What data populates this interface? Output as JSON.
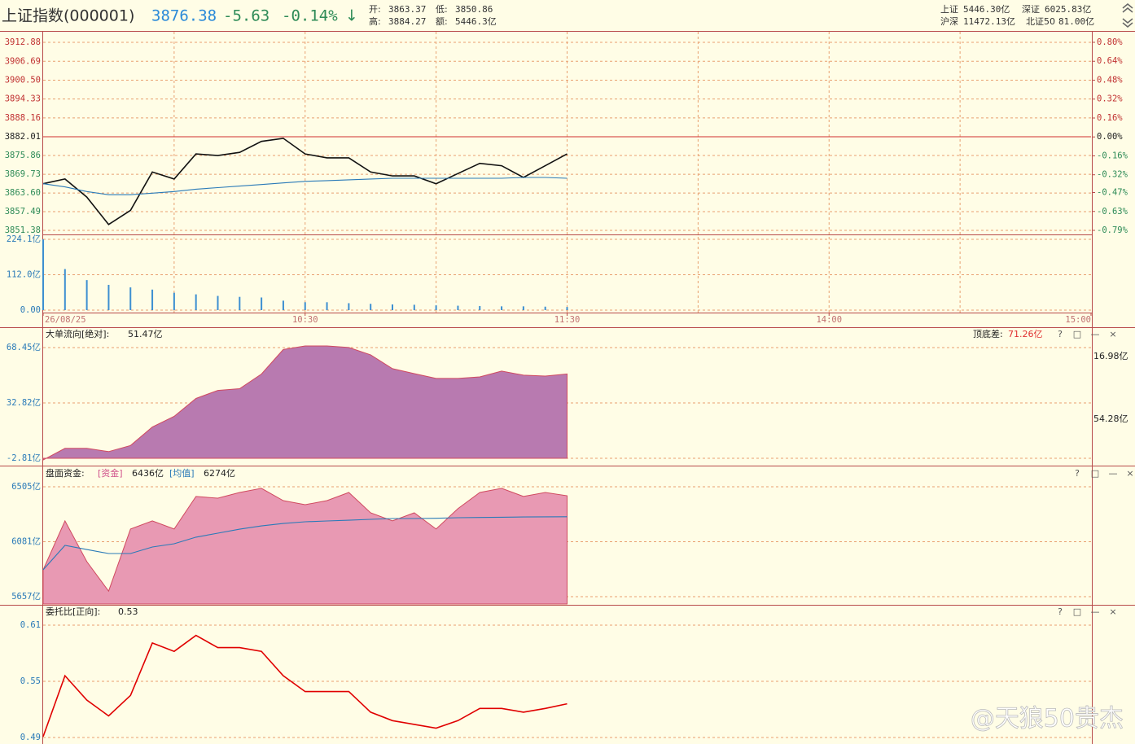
{
  "header": {
    "name": "上证指数(000001)",
    "price": "3876.38",
    "change": "-5.63",
    "change_pct": "-0.14%",
    "direction": "↓",
    "open_label": "开:",
    "open": "3863.37",
    "low_label": "低:",
    "low": "3850.86",
    "high_label": "高:",
    "high": "3884.27",
    "amount_label": "额:",
    "amount": "5446.3亿",
    "markets": [
      [
        "上证",
        "5446.30亿"
      ],
      [
        "深证",
        "6025.83亿"
      ],
      [
        "沪深",
        "11472.13亿"
      ],
      [
        "北证50",
        "81.00亿"
      ]
    ]
  },
  "window_controls": [
    "?",
    "□",
    "—",
    "×"
  ],
  "watermark": "@天狼50贵杰",
  "chart_data": [
    {
      "type": "line",
      "xlim": [
        0,
        240
      ],
      "x": [
        0,
        5,
        10,
        15,
        20,
        25,
        30,
        35,
        40,
        45,
        50,
        55,
        60,
        65,
        70,
        75,
        80,
        85,
        90,
        95,
        100,
        105,
        110,
        115,
        120
      ],
      "ylim": [
        3851.38,
        3912.88
      ],
      "yticks": [
        {
          "value": 3912.88,
          "label": "3912.88"
        },
        {
          "value": 3906.69,
          "label": "3906.69"
        },
        {
          "value": 3900.5,
          "label": "3900.50"
        },
        {
          "value": 3894.33,
          "label": "3894.33"
        },
        {
          "value": 3888.16,
          "label": "3888.16"
        },
        {
          "value": 3882.01,
          "label": "3882.01"
        },
        {
          "value": 3875.86,
          "label": "3875.86"
        },
        {
          "value": 3869.73,
          "label": "3869.73"
        },
        {
          "value": 3863.6,
          "label": "3863.60"
        },
        {
          "value": 3857.49,
          "label": "3857.49"
        },
        {
          "value": 3851.38,
          "label": "3851.38"
        }
      ],
      "y2lim": [
        -0.79,
        0.8
      ],
      "y2ticks": [
        {
          "value": 0.8,
          "label": "0.80%"
        },
        {
          "value": 0.64,
          "label": "0.64%"
        },
        {
          "value": 0.48,
          "label": "0.48%"
        },
        {
          "value": 0.32,
          "label": "0.32%"
        },
        {
          "value": 0.16,
          "label": "0.16%"
        },
        {
          "value": 0,
          "label": "0.00%"
        },
        {
          "value": -0.16,
          "label": "-0.16%"
        },
        {
          "value": -0.32,
          "label": "-0.32%"
        },
        {
          "value": -0.47,
          "label": "-0.47%"
        },
        {
          "value": -0.63,
          "label": "-0.63%"
        },
        {
          "value": -0.79,
          "label": "-0.79%"
        }
      ],
      "grid": true,
      "series": [
        {
          "color": "#111111",
          "values": [
            3866.63,
            3868.17,
            3862.28,
            3853.31,
            3857.92,
            3870.48,
            3868.17,
            3876.37,
            3875.86,
            3876.89,
            3880.47,
            3881.5,
            3876.37,
            3875.09,
            3875.09,
            3870.48,
            3869.2,
            3869.2,
            3866.63,
            3869.97,
            3873.3,
            3872.53,
            3868.68,
            3872.53,
            3876.38
          ]
        },
        {
          "color": "#2a7ab8",
          "values": [
            3866.63,
            3865.61,
            3864.07,
            3863.05,
            3863.05,
            3863.56,
            3864.07,
            3864.84,
            3865.35,
            3865.87,
            3866.38,
            3866.89,
            3867.4,
            3867.66,
            3867.91,
            3868.17,
            3868.43,
            3868.43,
            3868.43,
            3868.43,
            3868.43,
            3868.43,
            3868.68,
            3868.68,
            3868.43
          ]
        }
      ]
    },
    {
      "type": "bar",
      "xlim": [
        0,
        240
      ],
      "xticks": [
        {
          "value": 0,
          "label": "26/08/25"
        },
        {
          "value": 60,
          "label": "10:30"
        },
        {
          "value": 120,
          "label": "11:30"
        },
        {
          "value": 180,
          "label": "14:00"
        },
        {
          "value": 240,
          "label": "15:00"
        }
      ],
      "x": [
        0,
        5,
        10,
        15,
        20,
        25,
        30,
        35,
        40,
        45,
        50,
        55,
        60,
        65,
        70,
        75,
        80,
        85,
        90,
        95,
        100,
        105,
        110,
        115,
        120
      ],
      "values": [
        224,
        130,
        95,
        80,
        72,
        65,
        55,
        50,
        45,
        42,
        40,
        30,
        25,
        25,
        22,
        20,
        18,
        17,
        15,
        14,
        13,
        12,
        12,
        11,
        10
      ],
      "color": "#3d8fd1",
      "ylim": [
        0,
        224.1
      ],
      "yticks": [
        {
          "value": 224.1,
          "label": "224.1亿"
        },
        {
          "value": 112.0,
          "label": "112.0亿"
        },
        {
          "value": 0,
          "label": "0.00"
        }
      ]
    },
    {
      "type": "area",
      "title": "大单流向[绝对]:",
      "annotations": [
        "51.47亿",
        "顶底差:",
        "71.26亿",
        "16.98亿",
        "54.28亿"
      ],
      "xlim": [
        0,
        240
      ],
      "x": [
        0,
        5,
        10,
        15,
        20,
        25,
        30,
        35,
        40,
        45,
        50,
        55,
        60,
        65,
        70,
        75,
        80,
        85,
        90,
        95,
        100,
        105,
        110,
        115,
        120
      ],
      "ylim": [
        -2.81,
        68.45
      ],
      "yticks": [
        {
          "value": 68.45,
          "label": "68.45亿"
        },
        {
          "value": 32.82,
          "label": "32.82亿"
        },
        {
          "value": -2.81,
          "label": "-2.81亿"
        }
      ],
      "series": [
        {
          "color": "#b87ab0",
          "values": [
            -3.9,
            3.6,
            3.6,
            1.5,
            5.4,
            17.3,
            24.2,
            35.7,
            40.9,
            42.0,
            51.4,
            67.2,
            69.5,
            69.5,
            68.5,
            63.8,
            54.9,
            51.7,
            48.6,
            48.6,
            49.6,
            53.3,
            50.7,
            50.1,
            51.47
          ]
        }
      ]
    },
    {
      "type": "area",
      "title": "盘面资金:",
      "xlim": [
        0,
        240
      ],
      "x": [
        0,
        5,
        10,
        15,
        20,
        25,
        30,
        35,
        40,
        45,
        50,
        55,
        60,
        65,
        70,
        75,
        80,
        85,
        90,
        95,
        100,
        105,
        110,
        115,
        120
      ],
      "ylim": [
        5657,
        6505
      ],
      "yticks": [
        {
          "value": 6505,
          "label": "6505亿"
        },
        {
          "value": 6081,
          "label": "6081亿"
        },
        {
          "value": 5657,
          "label": "5657亿"
        }
      ],
      "series": [
        {
          "name": "[资金]",
          "legend_value": "6436亿",
          "type": "area",
          "color": "#e899b3",
          "values": [
            5864,
            6242,
            5928,
            5700,
            6179,
            6242,
            6179,
            6430,
            6417,
            6461,
            6493,
            6398,
            6367,
            6398,
            6461,
            6304,
            6242,
            6304,
            6179,
            6336,
            6461,
            6493,
            6430,
            6461,
            6436
          ]
        },
        {
          "name": "[均值]",
          "legend_value": "6274亿",
          "type": "line",
          "color": "#2a7ab8",
          "values": [
            5864,
            6053,
            6021,
            5990,
            5990,
            6040,
            6065,
            6116,
            6147,
            6178,
            6203,
            6222,
            6235,
            6241,
            6247,
            6254,
            6260,
            6260,
            6262,
            6266,
            6268,
            6270,
            6272,
            6273,
            6274
          ]
        }
      ]
    },
    {
      "type": "line",
      "title": "委托比[正向]:",
      "annotations": [
        "0.53"
      ],
      "xlim": [
        0,
        240
      ],
      "x": [
        0,
        5,
        10,
        15,
        20,
        25,
        30,
        35,
        40,
        45,
        50,
        55,
        60,
        65,
        70,
        75,
        80,
        85,
        90,
        95,
        100,
        105,
        110,
        115,
        120
      ],
      "ylim": [
        0.49,
        0.61
      ],
      "yticks": [
        0.61,
        0.55,
        0.49
      ],
      "series": [
        {
          "color": "#e00000",
          "values": [
            0.491,
            0.556,
            0.53,
            0.513,
            0.535,
            0.591,
            0.582,
            0.599,
            0.586,
            0.586,
            0.582,
            0.556,
            0.539,
            0.539,
            0.539,
            0.517,
            0.508,
            0.504,
            0.5,
            0.508,
            0.521,
            0.521,
            0.517,
            0.521,
            0.526
          ]
        }
      ]
    }
  ]
}
